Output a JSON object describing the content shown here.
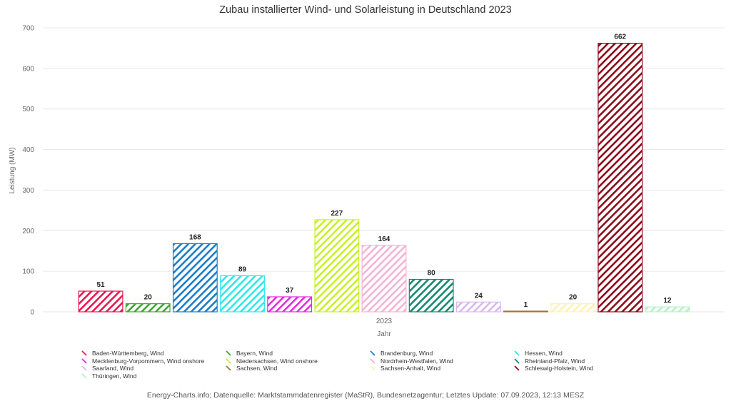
{
  "chart_data": {
    "type": "bar",
    "title": "Zubau installierter Wind- und Solarleistung in Deutschland 2023",
    "xlabel": "Jahr",
    "ylabel": "Leistung (MW)",
    "categories": [
      "2023"
    ],
    "ylim": [
      0,
      700
    ],
    "yticks": [
      0,
      100,
      200,
      300,
      400,
      500,
      600,
      700
    ],
    "grid": true,
    "legend_position": "bottom",
    "series": [
      {
        "name": "Baden-Württemberg, Wind",
        "values": [
          51
        ],
        "color": "#e8174f"
      },
      {
        "name": "Bayern, Wind",
        "values": [
          20
        ],
        "color": "#3fa535"
      },
      {
        "name": "Brandenburg, Wind",
        "values": [
          168
        ],
        "color": "#1a7dc8"
      },
      {
        "name": "Hessen, Wind",
        "values": [
          89
        ],
        "color": "#2ee8ee"
      },
      {
        "name": "Mecklenburg-Vorpommern, Wind onshore",
        "values": [
          37
        ],
        "color": "#e02ee0"
      },
      {
        "name": "Niedersachsen, Wind onshore",
        "values": [
          227
        ],
        "color": "#c8f02a"
      },
      {
        "name": "Nordrhein-Westfalen, Wind",
        "values": [
          164
        ],
        "color": "#f6b3d6"
      },
      {
        "name": "Rheinland-Pfalz, Wind",
        "values": [
          80
        ],
        "color": "#138a6e"
      },
      {
        "name": "Saarland, Wind",
        "values": [
          24
        ],
        "color": "#d9b8ef"
      },
      {
        "name": "Sachsen, Wind",
        "values": [
          1
        ],
        "color": "#a8722c"
      },
      {
        "name": "Sachsen-Anhalt, Wind",
        "values": [
          20
        ],
        "color": "#fdf2b5"
      },
      {
        "name": "Schleswig-Holstein, Wind",
        "values": [
          662
        ],
        "color": "#8b0a1a"
      },
      {
        "name": "Thüringen, Wind",
        "values": [
          12
        ],
        "color": "#b6f0c6"
      }
    ]
  },
  "footer": "Energy-Charts.info; Datenquelle: Marktstammdatenregister (MaStR), Bundesnetzagentur; Letztes Update: 07.09.2023, 12:13 MESZ"
}
